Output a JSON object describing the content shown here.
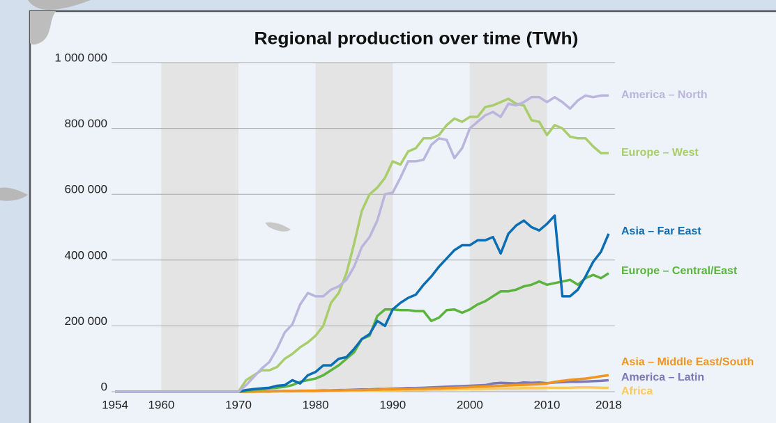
{
  "chart_data": {
    "type": "line",
    "title": "Regional production over time (TWh)",
    "x": [
      1954,
      1955,
      1956,
      1957,
      1958,
      1959,
      1960,
      1961,
      1962,
      1963,
      1964,
      1965,
      1966,
      1967,
      1968,
      1969,
      1970,
      1971,
      1972,
      1973,
      1974,
      1975,
      1976,
      1977,
      1978,
      1979,
      1980,
      1981,
      1982,
      1983,
      1984,
      1985,
      1986,
      1987,
      1988,
      1989,
      1990,
      1991,
      1992,
      1993,
      1994,
      1995,
      1996,
      1997,
      1998,
      1999,
      2000,
      2001,
      2002,
      2003,
      2004,
      2005,
      2006,
      2007,
      2008,
      2009,
      2010,
      2011,
      2012,
      2013,
      2014,
      2015,
      2016,
      2017,
      2018
    ],
    "xlim": [
      1954,
      2018
    ],
    "xticks": [
      1954,
      1960,
      1970,
      1980,
      1990,
      2000,
      2010,
      2018
    ],
    "ylim": [
      0,
      1000000
    ],
    "yticks": [
      {
        "value": 0,
        "label": "0"
      },
      {
        "value": 200000,
        "label": "200 000"
      },
      {
        "value": 400000,
        "label": "400 000"
      },
      {
        "value": 600000,
        "label": "600 000"
      },
      {
        "value": 800000,
        "label": "800 000"
      },
      {
        "value": 1000000,
        "label": "1 000 000"
      }
    ],
    "grid": true,
    "shaded_bands": [
      [
        1960,
        1970
      ],
      [
        1980,
        1990
      ],
      [
        2000,
        2010
      ]
    ],
    "legend": "line-end",
    "series": [
      {
        "name": "America – North",
        "color": "#b9b5dd",
        "values": [
          0,
          0,
          0,
          0,
          0,
          0,
          0,
          0,
          0,
          0,
          0,
          0,
          0,
          0,
          0,
          0,
          0,
          20000,
          45000,
          70000,
          90000,
          130000,
          180000,
          205000,
          265000,
          300000,
          290000,
          290000,
          310000,
          320000,
          340000,
          380000,
          440000,
          470000,
          520000,
          600000,
          605000,
          650000,
          700000,
          700000,
          705000,
          750000,
          770000,
          765000,
          710000,
          740000,
          800000,
          820000,
          840000,
          850000,
          835000,
          875000,
          870000,
          880000,
          895000,
          895000,
          880000,
          895000,
          880000,
          860000,
          885000,
          900000,
          895000,
          900000,
          900000
        ]
      },
      {
        "name": "Europe – West",
        "color": "#a9cd6b",
        "values": [
          0,
          0,
          0,
          0,
          0,
          0,
          0,
          0,
          0,
          0,
          0,
          0,
          0,
          0,
          0,
          0,
          0,
          35000,
          50000,
          65000,
          65000,
          75000,
          100000,
          115000,
          135000,
          150000,
          170000,
          200000,
          270000,
          300000,
          360000,
          450000,
          550000,
          600000,
          620000,
          650000,
          700000,
          690000,
          730000,
          740000,
          770000,
          770000,
          780000,
          810000,
          830000,
          820000,
          835000,
          835000,
          865000,
          870000,
          880000,
          890000,
          875000,
          870000,
          825000,
          820000,
          780000,
          810000,
          800000,
          775000,
          770000,
          770000,
          745000,
          725000,
          725000
        ]
      },
      {
        "name": "Asia – Far East",
        "color": "#0b6db4",
        "values": [
          0,
          0,
          0,
          0,
          0,
          0,
          0,
          0,
          0,
          0,
          0,
          0,
          0,
          0,
          0,
          0,
          0,
          5000,
          8000,
          10000,
          12000,
          18000,
          20000,
          35000,
          25000,
          50000,
          60000,
          80000,
          80000,
          100000,
          105000,
          130000,
          160000,
          175000,
          215000,
          200000,
          250000,
          270000,
          285000,
          295000,
          325000,
          350000,
          380000,
          405000,
          430000,
          445000,
          445000,
          460000,
          460000,
          470000,
          420000,
          480000,
          505000,
          520000,
          500000,
          490000,
          510000,
          535000,
          290000,
          290000,
          310000,
          350000,
          395000,
          425000,
          480000
        ]
      },
      {
        "name": "Europe – Central/East",
        "color": "#5bb43d",
        "values": [
          0,
          0,
          0,
          0,
          0,
          0,
          0,
          0,
          0,
          0,
          0,
          0,
          0,
          0,
          0,
          0,
          0,
          3000,
          5000,
          8000,
          10000,
          12000,
          15000,
          20000,
          30000,
          35000,
          40000,
          50000,
          65000,
          80000,
          100000,
          120000,
          160000,
          170000,
          230000,
          250000,
          250000,
          248000,
          248000,
          245000,
          245000,
          215000,
          225000,
          248000,
          250000,
          240000,
          250000,
          265000,
          275000,
          290000,
          305000,
          305000,
          310000,
          320000,
          325000,
          335000,
          325000,
          330000,
          335000,
          340000,
          325000,
          345000,
          355000,
          345000,
          360000
        ]
      },
      {
        "name": "Asia – Middle East/South",
        "color": "#f0961e",
        "values": [
          0,
          0,
          0,
          0,
          0,
          0,
          0,
          0,
          0,
          0,
          0,
          0,
          0,
          0,
          0,
          0,
          0,
          0,
          0,
          1000,
          1000,
          1000,
          2000,
          2000,
          2000,
          3000,
          3000,
          3000,
          4000,
          4000,
          5000,
          5000,
          5000,
          6000,
          6000,
          7000,
          7000,
          8000,
          8000,
          9000,
          9000,
          10000,
          10000,
          11000,
          12000,
          13000,
          14000,
          15000,
          16000,
          17000,
          18000,
          19000,
          20000,
          21000,
          22000,
          23000,
          25000,
          30000,
          33000,
          36000,
          38000,
          40000,
          43000,
          47000,
          50000
        ]
      },
      {
        "name": "America – Latin",
        "color": "#7a78b9",
        "values": [
          0,
          0,
          0,
          0,
          0,
          0,
          0,
          0,
          0,
          0,
          0,
          0,
          0,
          0,
          0,
          0,
          0,
          0,
          1000,
          1000,
          1000,
          2000,
          2000,
          2000,
          3000,
          3000,
          3000,
          4000,
          4000,
          5000,
          5000,
          6000,
          7000,
          7000,
          8000,
          8000,
          9000,
          10000,
          11000,
          11000,
          12000,
          13000,
          14000,
          15000,
          16000,
          17000,
          18000,
          19000,
          20000,
          25000,
          27000,
          26000,
          25000,
          28000,
          27000,
          28000,
          26000,
          28000,
          29000,
          30000,
          30000,
          31000,
          32000,
          33000,
          35000
        ]
      },
      {
        "name": "Africa",
        "color": "#fbc95c",
        "values": [
          0,
          0,
          0,
          0,
          0,
          0,
          0,
          0,
          0,
          0,
          0,
          0,
          0,
          0,
          0,
          0,
          0,
          0,
          0,
          0,
          0,
          1000,
          1000,
          1000,
          1000,
          1000,
          1000,
          2000,
          2000,
          2000,
          2000,
          3000,
          3000,
          3000,
          3000,
          4000,
          4000,
          4000,
          5000,
          5000,
          5000,
          6000,
          6000,
          7000,
          7000,
          8000,
          8000,
          8000,
          9000,
          9000,
          10000,
          10000,
          10000,
          11000,
          11000,
          11000,
          12000,
          12000,
          12000,
          12000,
          13000,
          13000,
          13000,
          12000,
          12000
        ]
      }
    ]
  }
}
